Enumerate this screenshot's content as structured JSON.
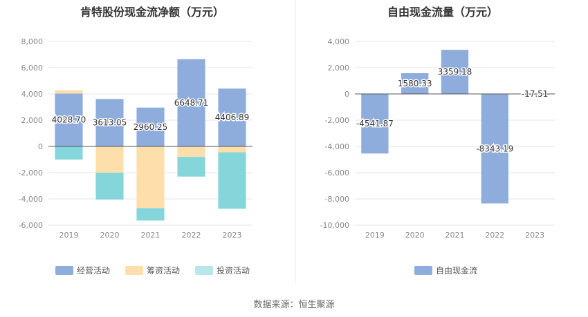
{
  "chart_data": [
    {
      "type": "bar",
      "stacked": true,
      "title": "肯特股份现金流净额（万元）",
      "categories": [
        "2019",
        "2020",
        "2021",
        "2022",
        "2023"
      ],
      "ylim": [
        -6000,
        8000
      ],
      "yticks": [
        "8,000",
        "6,000",
        "4,000",
        "2,000",
        "0",
        "-2,000",
        "-4,000",
        "-6,000"
      ],
      "ytick_values": [
        8000,
        6000,
        4000,
        2000,
        0,
        -2000,
        -4000,
        -6000
      ],
      "series": [
        {
          "name": "经营活动",
          "color": "#8eacdc",
          "values": [
            4028.7,
            3613.05,
            2960.25,
            6648.71,
            4406.89
          ]
        },
        {
          "name": "筹资活动",
          "color": "#fedfab",
          "values": [
            250,
            -2000,
            -4700,
            -800,
            -450
          ]
        },
        {
          "name": "投资活动",
          "color": "#84d6da",
          "values": [
            -1000,
            -2050,
            -950,
            -1500,
            -4300
          ]
        }
      ],
      "data_labels": [
        "4028.70",
        "3613.05",
        "2960.25",
        "6648.71",
        "4406.89"
      ],
      "legend": [
        {
          "label": "经营活动",
          "color": "#8eacdc"
        },
        {
          "label": "筹资活动",
          "color": "#fedfab"
        },
        {
          "label": "投资活动",
          "color": "#b9e6ea"
        }
      ]
    },
    {
      "type": "bar",
      "title": "自由现金流量（万元）",
      "categories": [
        "2019",
        "2020",
        "2021",
        "2022",
        "2023"
      ],
      "ylim": [
        -10000,
        4000
      ],
      "yticks": [
        "4,000",
        "2,000",
        "0",
        "-2,000",
        "-4,000",
        "-6,000",
        "-8,000",
        "-10,000"
      ],
      "ytick_values": [
        4000,
        2000,
        0,
        -2000,
        -4000,
        -6000,
        -8000,
        -10000
      ],
      "series": [
        {
          "name": "自由现金流",
          "color": "#8eacdc",
          "values": [
            -4541.87,
            1580.33,
            3359.18,
            -8343.19,
            -17.51
          ]
        }
      ],
      "data_labels": [
        "-4541.87",
        "1580.33",
        "3359.18",
        "-8343.19",
        "-17.51"
      ],
      "legend": [
        {
          "label": "自由现金流",
          "color": "#8eacdc"
        }
      ]
    }
  ],
  "footer": {
    "source": "数据来源：恒生聚源"
  }
}
